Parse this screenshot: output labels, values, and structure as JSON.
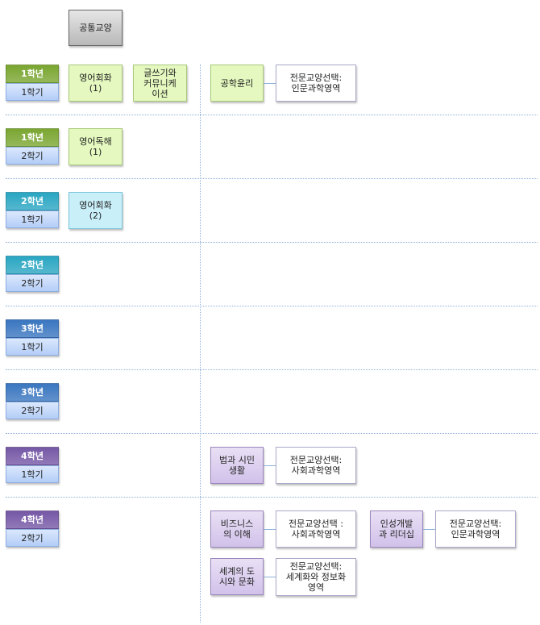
{
  "header": {
    "label": "공통교양"
  },
  "colors": {
    "year1": "#7aa631",
    "year2": "#2aa6c2",
    "year3": "#3a76c0",
    "year4": "#7658a6"
  },
  "rows": [
    {
      "year": "1학년",
      "semester": "1학기",
      "color": "year1",
      "left_courses": [
        {
          "label": "영어회화\n(1)",
          "style": "green"
        },
        {
          "label": "글쓰기와\n커뮤니케\n이션",
          "style": "green"
        }
      ],
      "right_courses": [
        [
          {
            "label": "공학윤리",
            "style": "green"
          },
          {
            "label": "전문교양선택:\n인문과학영역",
            "style": "white"
          }
        ]
      ]
    },
    {
      "year": "1학년",
      "semester": "2학기",
      "color": "year1",
      "left_courses": [
        {
          "label": "영어독해\n(1)",
          "style": "green"
        }
      ],
      "right_courses": []
    },
    {
      "year": "2학년",
      "semester": "1학기",
      "color": "year2",
      "left_courses": [
        {
          "label": "영어회화\n(2)",
          "style": "teal"
        }
      ],
      "right_courses": []
    },
    {
      "year": "2학년",
      "semester": "2학기",
      "color": "year2",
      "left_courses": [],
      "right_courses": []
    },
    {
      "year": "3학년",
      "semester": "1학기",
      "color": "year3",
      "left_courses": [],
      "right_courses": []
    },
    {
      "year": "3학년",
      "semester": "2학기",
      "color": "year3",
      "left_courses": [],
      "right_courses": []
    },
    {
      "year": "4학년",
      "semester": "1학기",
      "color": "year4",
      "left_courses": [],
      "right_courses": [
        [
          {
            "label": "법과 시민\n생활",
            "style": "purple"
          },
          {
            "label": "전문교양선택:\n사회과학영역",
            "style": "white"
          }
        ]
      ]
    },
    {
      "year": "4학년",
      "semester": "2학기",
      "color": "year4",
      "left_courses": [],
      "right_courses": [
        [
          {
            "label": "비즈니스\n의 이해",
            "style": "purple"
          },
          {
            "label": "전문교양선택 :\n사회과학영역",
            "style": "white"
          },
          {
            "label": "인성개발\n과 리더십",
            "style": "purple"
          },
          {
            "label": "전문교양선택:\n인문과학영역",
            "style": "white"
          }
        ],
        [
          {
            "label": "세계의 도\n시와 문화",
            "style": "purple"
          },
          {
            "label": "전문교양선택:\n세계화와 정보화\n영역",
            "style": "white"
          }
        ]
      ]
    }
  ]
}
